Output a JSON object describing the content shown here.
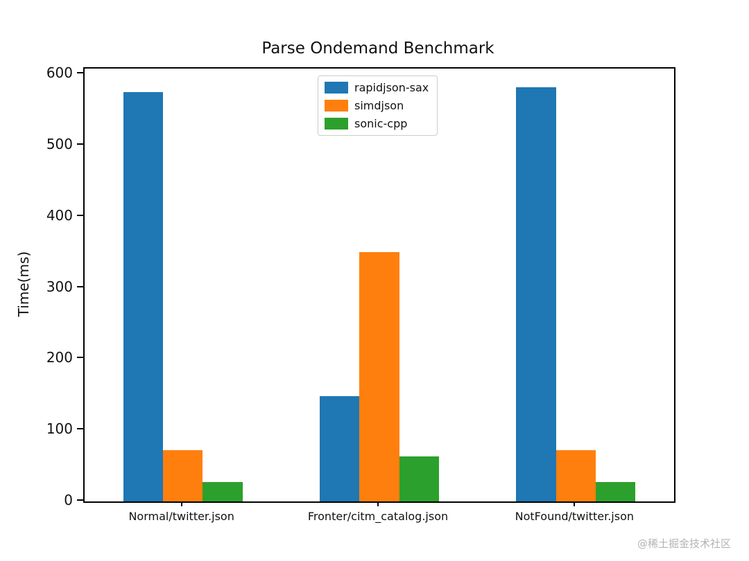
{
  "title": "Parse Ondemand Benchmark",
  "watermark": "@稀土掘金技术社区",
  "chart_data": {
    "type": "bar",
    "title": "Parse Ondemand Benchmark",
    "xlabel": "",
    "ylabel": "Time(ms)",
    "categories": [
      "Normal/twitter.json",
      "Fronter/citm_catalog.json",
      "NotFound/twitter.json"
    ],
    "series": [
      {
        "name": "rapidjson-sax",
        "color": "#1f77b4",
        "values": [
          575,
          148,
          582
        ]
      },
      {
        "name": "simdjson",
        "color": "#ff7f0e",
        "values": [
          72,
          350,
          72
        ]
      },
      {
        "name": "sonic-cpp",
        "color": "#2ca02c",
        "values": [
          27,
          63,
          27
        ]
      }
    ],
    "ylim": [
      0,
      600
    ],
    "yticks": [
      0,
      100,
      200,
      300,
      400,
      500,
      600
    ],
    "grid": false,
    "legend_position": "upper center"
  }
}
